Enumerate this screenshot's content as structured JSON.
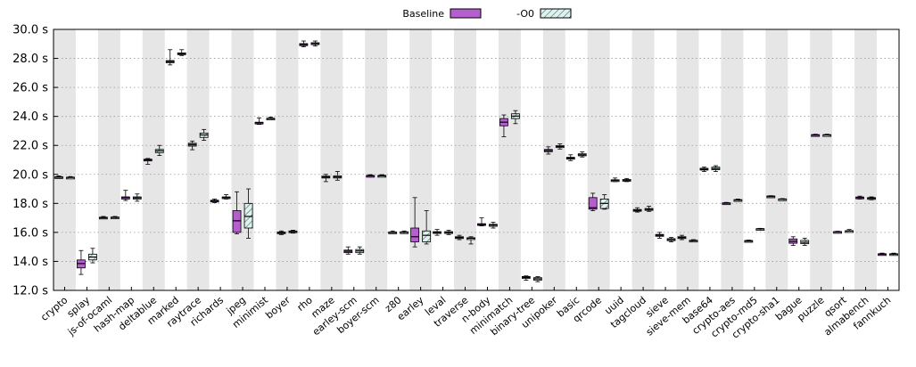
{
  "colors": {
    "baseline": "#b55fcf",
    "o0": "#e2f1ee",
    "o0_hatch": "#2f6c66",
    "band": "#e6e6e6",
    "grid": "#9a9a9a"
  },
  "legend": {
    "baseline": "Baseline",
    "o0": "-O0"
  },
  "chart_data": {
    "type": "box",
    "ylim": [
      12,
      30
    ],
    "y_ticks": [
      "12.0 s",
      "14.0 s",
      "16.0 s",
      "18.0 s",
      "20.0 s",
      "22.0 s",
      "24.0 s",
      "26.0 s",
      "28.0 s",
      "30.0 s"
    ],
    "y_unit": "s",
    "grid": true,
    "legend_position": "top-center",
    "categories": [
      "crypto",
      "splay",
      "js-of-ocaml",
      "hash-map",
      "deltablue",
      "marked",
      "raytrace",
      "richards",
      "jpeg",
      "minimist",
      "boyer",
      "rho",
      "maze",
      "earley-scm",
      "boyer-scm",
      "z80",
      "earley",
      "leval",
      "traverse",
      "n-body",
      "minimatch",
      "binary-tree",
      "unipoker",
      "basic",
      "qrcode",
      "uuid",
      "tagcloud",
      "sieve",
      "sieve-mem",
      "base64",
      "crypto-aes",
      "crypto-md5",
      "crypto-sha1",
      "bague",
      "puzzle",
      "qsort",
      "almabench",
      "fannkuch"
    ],
    "series": [
      {
        "name": "Baseline",
        "boxes": [
          [
            19.75,
            19.8,
            19.82,
            19.84,
            19.9
          ],
          [
            13.1,
            13.55,
            13.85,
            14.1,
            14.75
          ],
          [
            16.95,
            17.0,
            17.02,
            17.05,
            17.1
          ],
          [
            18.2,
            18.3,
            18.4,
            18.45,
            18.9
          ],
          [
            20.7,
            20.93,
            21.0,
            21.05,
            21.1
          ],
          [
            27.55,
            27.7,
            27.78,
            27.85,
            28.6
          ],
          [
            21.7,
            21.95,
            22.05,
            22.15,
            22.3
          ],
          [
            18.05,
            18.12,
            18.17,
            18.22,
            18.3
          ],
          [
            15.9,
            16.0,
            16.8,
            17.5,
            18.8
          ],
          [
            23.45,
            23.52,
            23.56,
            23.6,
            23.9
          ],
          [
            15.85,
            15.93,
            15.98,
            16.03,
            16.1
          ],
          [
            28.8,
            28.88,
            28.95,
            29.02,
            29.2
          ],
          [
            19.5,
            19.75,
            19.82,
            19.88,
            20.0
          ],
          [
            14.5,
            14.6,
            14.7,
            14.78,
            15.0
          ],
          [
            19.82,
            19.87,
            19.9,
            19.93,
            19.98
          ],
          [
            15.95,
            15.99,
            16.01,
            16.03,
            16.1
          ],
          [
            15.0,
            15.35,
            15.7,
            16.3,
            18.4
          ],
          [
            15.8,
            15.96,
            16.0,
            16.05,
            16.2
          ],
          [
            15.5,
            15.6,
            15.65,
            15.7,
            15.8
          ],
          [
            16.45,
            16.52,
            16.55,
            16.6,
            17.0
          ],
          [
            22.6,
            23.35,
            23.6,
            23.85,
            24.1
          ],
          [
            12.7,
            12.83,
            12.9,
            12.96,
            13.0
          ],
          [
            21.4,
            21.56,
            21.65,
            21.72,
            21.9
          ],
          [
            20.95,
            21.05,
            21.12,
            21.18,
            21.35
          ],
          [
            17.5,
            17.6,
            17.7,
            18.4,
            18.7
          ],
          [
            19.5,
            19.57,
            19.6,
            19.63,
            19.75
          ],
          [
            17.4,
            17.48,
            17.52,
            17.58,
            17.7
          ],
          [
            15.6,
            15.73,
            15.8,
            15.86,
            16.0
          ],
          [
            15.5,
            15.58,
            15.65,
            15.7,
            15.8
          ],
          [
            20.2,
            20.3,
            20.35,
            20.42,
            20.5
          ],
          [
            17.97,
            18.0,
            18.02,
            18.04,
            18.07
          ],
          [
            15.37,
            15.4,
            15.42,
            15.44,
            15.47
          ],
          [
            18.45,
            18.47,
            18.49,
            18.51,
            18.53
          ],
          [
            15.1,
            15.25,
            15.38,
            15.55,
            15.7
          ],
          [
            22.67,
            22.7,
            22.72,
            22.74,
            22.77
          ],
          [
            16.02,
            16.04,
            16.05,
            16.06,
            16.08
          ],
          [
            18.3,
            18.37,
            18.4,
            18.44,
            18.5
          ],
          [
            14.43,
            14.47,
            14.5,
            14.53,
            14.57
          ]
        ]
      },
      {
        "name": "-O0",
        "boxes": [
          [
            19.72,
            19.76,
            19.79,
            19.81,
            19.85
          ],
          [
            13.9,
            14.1,
            14.3,
            14.5,
            14.9
          ],
          [
            16.98,
            17.01,
            17.03,
            17.06,
            17.1
          ],
          [
            18.15,
            18.3,
            18.38,
            18.45,
            18.65
          ],
          [
            21.3,
            21.5,
            21.62,
            21.72,
            22.0
          ],
          [
            28.2,
            28.28,
            28.32,
            28.38,
            28.6
          ],
          [
            22.35,
            22.55,
            22.72,
            22.85,
            23.1
          ],
          [
            18.3,
            18.36,
            18.4,
            18.45,
            18.6
          ],
          [
            15.6,
            16.3,
            17.1,
            18.0,
            19.0
          ],
          [
            23.78,
            23.82,
            23.85,
            23.88,
            23.95
          ],
          [
            15.95,
            16.0,
            16.05,
            16.1,
            16.15
          ],
          [
            28.85,
            28.95,
            29.02,
            29.08,
            29.2
          ],
          [
            19.6,
            19.75,
            19.82,
            19.9,
            20.2
          ],
          [
            14.5,
            14.6,
            14.72,
            14.82,
            15.0
          ],
          [
            19.83,
            19.88,
            19.9,
            19.93,
            19.98
          ],
          [
            15.95,
            15.98,
            16.01,
            16.04,
            16.1
          ],
          [
            15.2,
            15.35,
            15.8,
            16.1,
            17.5
          ],
          [
            15.85,
            15.95,
            16.0,
            16.05,
            16.15
          ],
          [
            15.2,
            15.55,
            15.6,
            15.63,
            15.7
          ],
          [
            16.3,
            16.42,
            16.5,
            16.56,
            16.7
          ],
          [
            23.5,
            23.85,
            24.02,
            24.18,
            24.4
          ],
          [
            12.6,
            12.7,
            12.8,
            12.88,
            12.95
          ],
          [
            21.75,
            21.85,
            21.92,
            21.98,
            22.1
          ],
          [
            21.2,
            21.28,
            21.35,
            21.42,
            21.55
          ],
          [
            17.6,
            17.65,
            18.0,
            18.3,
            18.6
          ],
          [
            19.5,
            19.55,
            19.6,
            19.65,
            19.72
          ],
          [
            17.45,
            17.52,
            17.58,
            17.65,
            17.8
          ],
          [
            15.35,
            15.43,
            15.5,
            15.57,
            15.65
          ],
          [
            15.35,
            15.4,
            15.43,
            15.46,
            15.5
          ],
          [
            20.2,
            20.32,
            20.4,
            20.5,
            20.6
          ],
          [
            18.15,
            18.2,
            18.23,
            18.26,
            18.3
          ],
          [
            16.2,
            16.22,
            16.24,
            16.26,
            16.28
          ],
          [
            18.25,
            18.27,
            18.29,
            18.31,
            18.33
          ],
          [
            15.1,
            15.22,
            15.32,
            15.45,
            15.6
          ],
          [
            22.67,
            22.7,
            22.72,
            22.74,
            22.77
          ],
          [
            16.05,
            16.08,
            16.1,
            16.12,
            16.2
          ],
          [
            18.25,
            18.3,
            18.35,
            18.4,
            18.45
          ],
          [
            14.43,
            14.47,
            14.5,
            14.53,
            14.57
          ]
        ]
      }
    ]
  }
}
